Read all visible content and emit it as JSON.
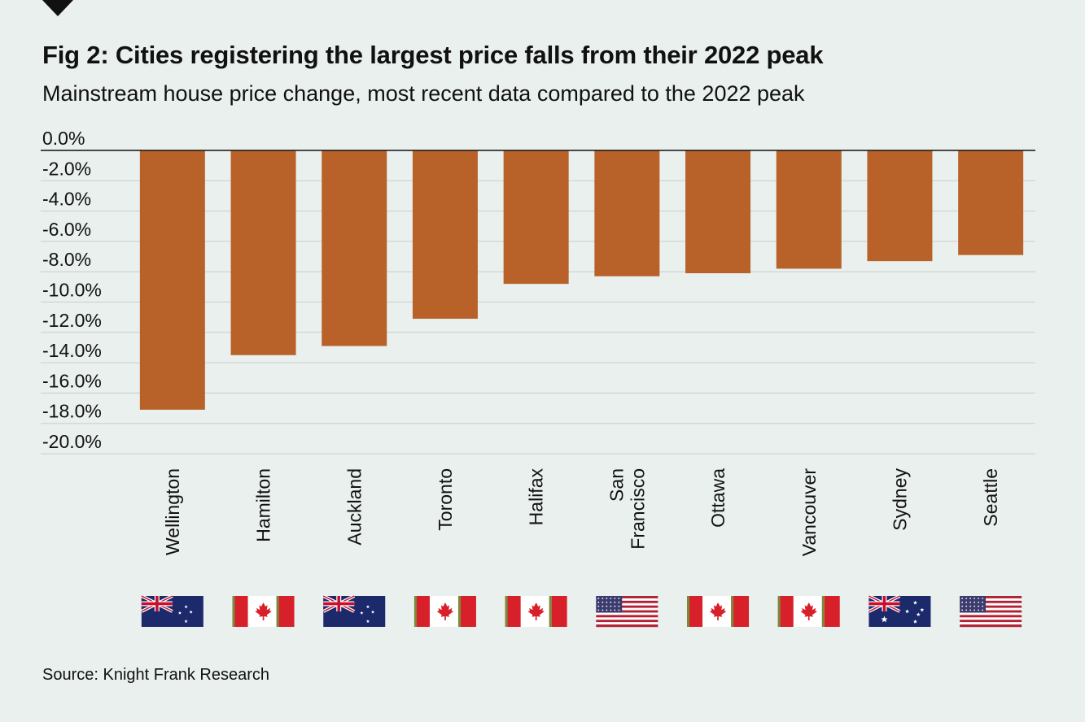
{
  "header": {
    "title": "Fig 2: Cities registering the largest price falls from their 2022 peak",
    "subtitle": "Mainstream house price change, most recent data compared to the 2022 peak"
  },
  "footer": {
    "source": "Source: Knight Frank Research"
  },
  "colors": {
    "background": "#e9f0ed",
    "bar": "#b8622a",
    "gridline": "#c7cecb",
    "zero_line": "#111111"
  },
  "chart_data": {
    "type": "bar",
    "title": "Fig 2: Cities registering the largest price falls from their 2022 peak",
    "subtitle": "Mainstream house price change, most recent data compared to the 2022 peak",
    "xlabel": "",
    "ylabel": "",
    "ylim": [
      -20,
      0
    ],
    "grid": true,
    "y_ticks": [
      "0.0%",
      "-2.0%",
      "-4.0%",
      "-6.0%",
      "-8.0%",
      "-10.0%",
      "-12.0%",
      "-14.0%",
      "-16.0%",
      "-18.0%",
      "-20.0%"
    ],
    "categories": [
      "Wellington",
      "Hamilton",
      "Auckland",
      "Toronto",
      "Halifax",
      "San Francisco",
      "Ottawa",
      "Vancouver",
      "Sydney",
      "Seattle"
    ],
    "category_lines": [
      [
        "Wellington"
      ],
      [
        "Hamilton"
      ],
      [
        "Auckland"
      ],
      [
        "Toronto"
      ],
      [
        "Halifax"
      ],
      [
        "San",
        "Francisco"
      ],
      [
        "Ottawa"
      ],
      [
        "Vancouver"
      ],
      [
        "Sydney"
      ],
      [
        "Seattle"
      ]
    ],
    "countries": [
      "New Zealand",
      "Canada",
      "New Zealand",
      "Canada",
      "Canada",
      "United States",
      "Canada",
      "Canada",
      "Australia",
      "United States"
    ],
    "flags": [
      "nz-flag-icon",
      "canada-flag-icon",
      "nz-flag-icon",
      "canada-flag-icon",
      "canada-flag-icon",
      "us-flag-icon",
      "canada-flag-icon",
      "canada-flag-icon",
      "australia-flag-icon",
      "us-flag-icon"
    ],
    "values": [
      -17.1,
      -13.5,
      -12.9,
      -11.1,
      -8.8,
      -8.3,
      -8.1,
      -7.8,
      -7.3,
      -6.9
    ],
    "source": "Source: Knight Frank Research"
  }
}
